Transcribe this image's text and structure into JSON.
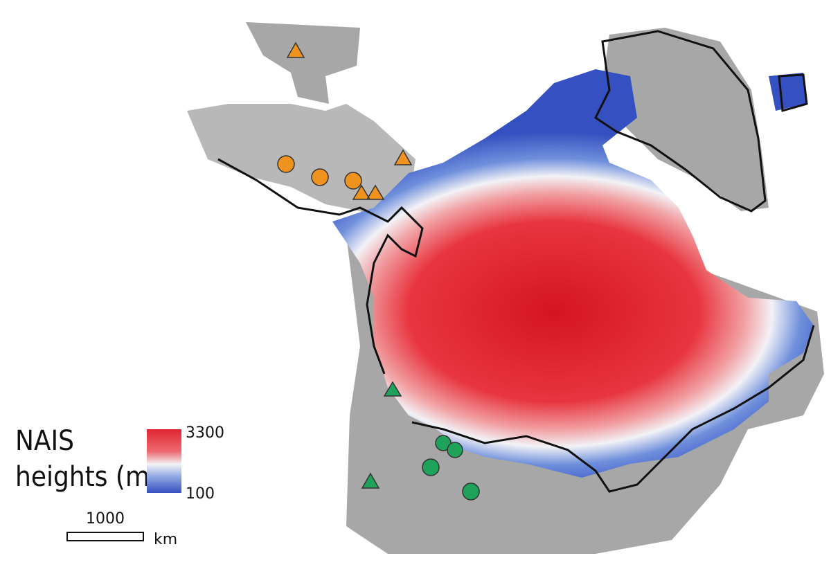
{
  "legend": {
    "title": [
      "NAIS",
      "heights (m)"
    ],
    "max": 3300,
    "min": 100
  },
  "scale_bar": {
    "length": 1000,
    "unit": "km"
  }
}
